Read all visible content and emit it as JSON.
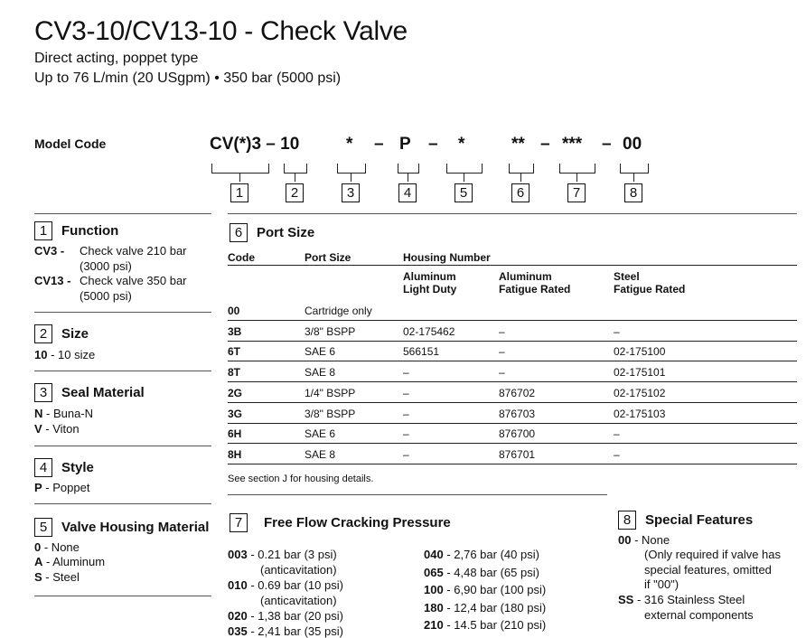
{
  "header": {
    "title": "CV3-10/CV13-10 - Check Valve",
    "subtitle1": "Direct acting, poppet type",
    "subtitle2": "Up to 76 L/min (20 USgpm) • 350 bar (5000 psi)"
  },
  "model_code": {
    "label": "Model Code",
    "parts": [
      "CV(*)3 – 10",
      "*",
      "–",
      "P",
      "–",
      "*",
      "**",
      "–",
      "***",
      "–",
      "00"
    ],
    "boxes": [
      "1",
      "2",
      "3",
      "4",
      "5",
      "6",
      "7",
      "8"
    ]
  },
  "function": {
    "num": "1",
    "title": "Function",
    "items": [
      {
        "code": "CV3 -",
        "line1": "Check valve 210 bar",
        "line2": "(3000 psi)"
      },
      {
        "code": "CV13 -",
        "line1": "Check valve 350 bar",
        "line2": "(5000 psi)"
      }
    ]
  },
  "size": {
    "num": "2",
    "title": "Size",
    "items": [
      {
        "code": "10",
        "text": "- 10 size"
      }
    ]
  },
  "seal": {
    "num": "3",
    "title": "Seal Material",
    "items": [
      {
        "code": "N",
        "text": "- Buna-N"
      },
      {
        "code": "V",
        "text": "- Viton"
      }
    ]
  },
  "style": {
    "num": "4",
    "title": "Style",
    "items": [
      {
        "code": "P",
        "text": "- Poppet"
      }
    ]
  },
  "housing_material": {
    "num": "5",
    "title": "Valve Housing Material",
    "items": [
      {
        "code": "0",
        "text": "- None"
      },
      {
        "code": "A",
        "text": "- Aluminum"
      },
      {
        "code": "S",
        "text": "- Steel"
      }
    ]
  },
  "port_size": {
    "num": "6",
    "title": "Port Size",
    "headers": {
      "code": "Code",
      "port": "Port Size",
      "housing": "Housing Number",
      "al_light_1": "Aluminum",
      "al_light_2": "Light Duty",
      "al_fat_1": "Aluminum",
      "al_fat_2": "Fatigue Rated",
      "steel_1": "Steel",
      "steel_2": "Fatigue Rated"
    },
    "rows": [
      {
        "code": "00",
        "port": "Cartridge only",
        "al_light": "",
        "al_fat": "",
        "steel": ""
      },
      {
        "code": "3B",
        "port": "3/8\" BSPP",
        "al_light": "02-175462",
        "al_fat": "–",
        "steel": "–"
      },
      {
        "code": "6T",
        "port": "SAE 6",
        "al_light": "566151",
        "al_fat": "–",
        "steel": "02-175100"
      },
      {
        "code": "8T",
        "port": "SAE 8",
        "al_light": "–",
        "al_fat": "–",
        "steel": "02-175101"
      },
      {
        "code": "2G",
        "port": "1/4\" BSPP",
        "al_light": "–",
        "al_fat": "876702",
        "steel": "02-175102"
      },
      {
        "code": "3G",
        "port": "3/8\" BSPP",
        "al_light": "–",
        "al_fat": "876703",
        "steel": "02-175103"
      },
      {
        "code": "6H",
        "port": "SAE 6",
        "al_light": "–",
        "al_fat": "876700",
        "steel": "–"
      },
      {
        "code": "8H",
        "port": "SAE 8",
        "al_light": "–",
        "al_fat": "876701",
        "steel": "–"
      }
    ],
    "note": "See section J for housing details."
  },
  "cracking": {
    "num": "7",
    "title": "Free Flow Cracking Pressure",
    "left": [
      {
        "code": "003",
        "text": "- 0.21 bar (3 psi)",
        "extra": "(anticavitation)"
      },
      {
        "code": "010",
        "text": "- 0.69 bar (10 psi)",
        "extra": "(anticavitation)"
      },
      {
        "code": "020",
        "text": "- 1,38 bar (20 psi)",
        "extra": ""
      },
      {
        "code": "035",
        "text": "- 2,41 bar (35 psi)",
        "extra": ""
      }
    ],
    "right": [
      {
        "code": "040",
        "text": "- 2,76 bar (40 psi)"
      },
      {
        "code": "065",
        "text": "- 4,48 bar (65 psi)"
      },
      {
        "code": "100",
        "text": "- 6,90 bar (100 psi)"
      },
      {
        "code": "180",
        "text": "- 12,4 bar (180 psi)"
      },
      {
        "code": "210",
        "text": "- 14.5 bar (210 psi)"
      }
    ]
  },
  "special": {
    "num": "8",
    "title": "Special Features",
    "items": [
      {
        "code": "00",
        "text": "- None",
        "lines": [
          "(Only required if valve has",
          "special features, omitted",
          "if \"00\")"
        ]
      },
      {
        "code": "SS",
        "text": "- 316 Stainless Steel",
        "lines": [
          "external components"
        ]
      }
    ]
  }
}
